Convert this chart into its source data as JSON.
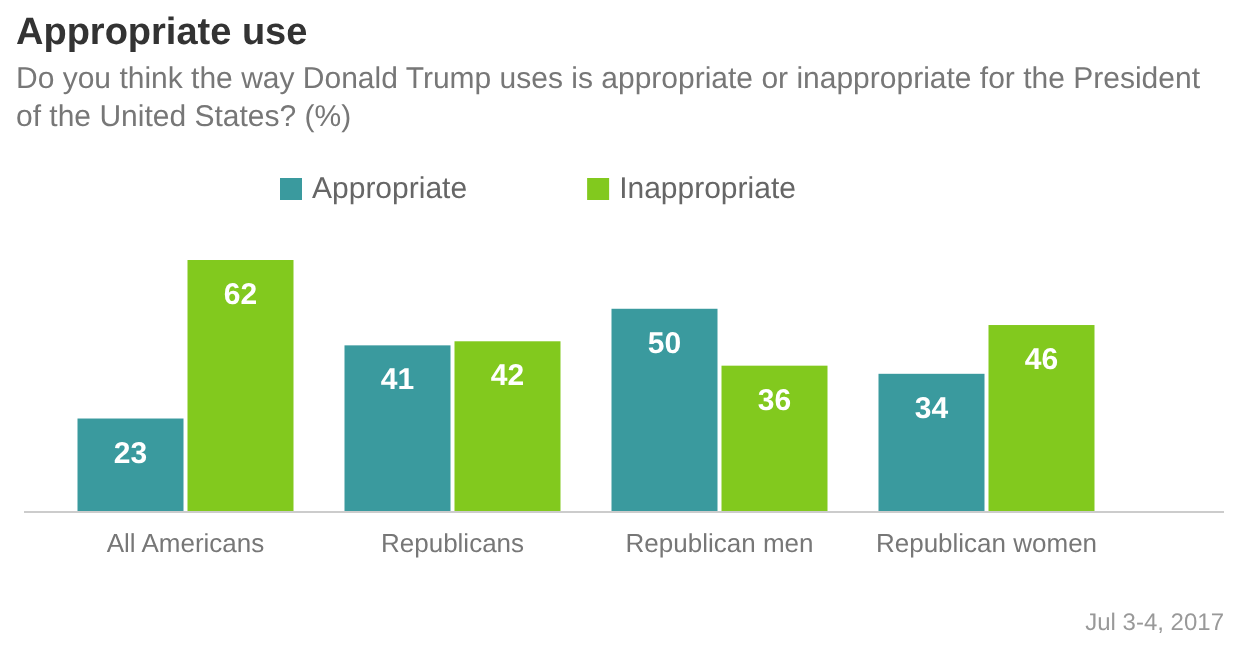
{
  "chart_data": {
    "type": "bar",
    "title": "Appropriate use",
    "subtitle": "Do you think the way Donald Trump uses is appropriate or inappropriate for the President of the United States? (%)",
    "categories": [
      "All Americans",
      "Republicans",
      "Republican men",
      "Republican women"
    ],
    "series": [
      {
        "name": "Appropriate",
        "color": "#3a9a9e",
        "values": [
          23,
          41,
          50,
          34
        ]
      },
      {
        "name": "Inappropriate",
        "color": "#82c91e",
        "values": [
          62,
          42,
          36,
          46
        ]
      }
    ],
    "data_labels": true,
    "legend": "top",
    "annotations": [
      "Jul  3-4, 2017"
    ]
  }
}
